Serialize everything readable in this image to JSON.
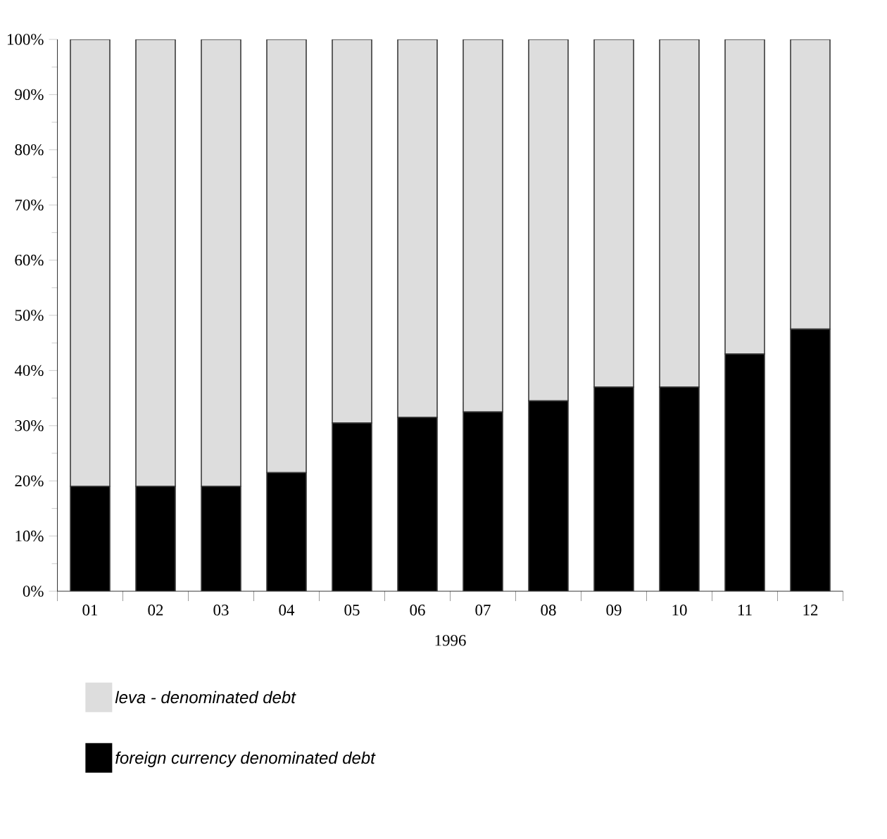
{
  "chart_data": {
    "type": "bar",
    "stacked": true,
    "xlabel": "1996",
    "categories": [
      "01",
      "02",
      "03",
      "04",
      "05",
      "06",
      "07",
      "08",
      "09",
      "10",
      "11",
      "12"
    ],
    "series": [
      {
        "name": "foreign currency denominated debt",
        "color": "#000000",
        "values": [
          19,
          19,
          19,
          21.5,
          30.5,
          31.5,
          32.5,
          34.5,
          37,
          37,
          43,
          47.5
        ]
      },
      {
        "name": "leva - denominated debt",
        "color": "#dddddd",
        "values": [
          81,
          81,
          81,
          78.5,
          69.5,
          68.5,
          67.5,
          65.5,
          63,
          63,
          57,
          52.5
        ]
      }
    ],
    "ylim": [
      0,
      100
    ],
    "yticks": [
      {
        "value": 0,
        "label": "0%"
      },
      {
        "value": 10,
        "label": "10%"
      },
      {
        "value": 20,
        "label": "20%"
      },
      {
        "value": 30,
        "label": "30%"
      },
      {
        "value": 40,
        "label": "40%"
      },
      {
        "value": 50,
        "label": "50%"
      },
      {
        "value": 60,
        "label": "60%"
      },
      {
        "value": 70,
        "label": "70%"
      },
      {
        "value": 80,
        "label": "80%"
      },
      {
        "value": 90,
        "label": "90%"
      },
      {
        "value": 100,
        "label": "100%"
      }
    ],
    "legend": "bottom"
  }
}
